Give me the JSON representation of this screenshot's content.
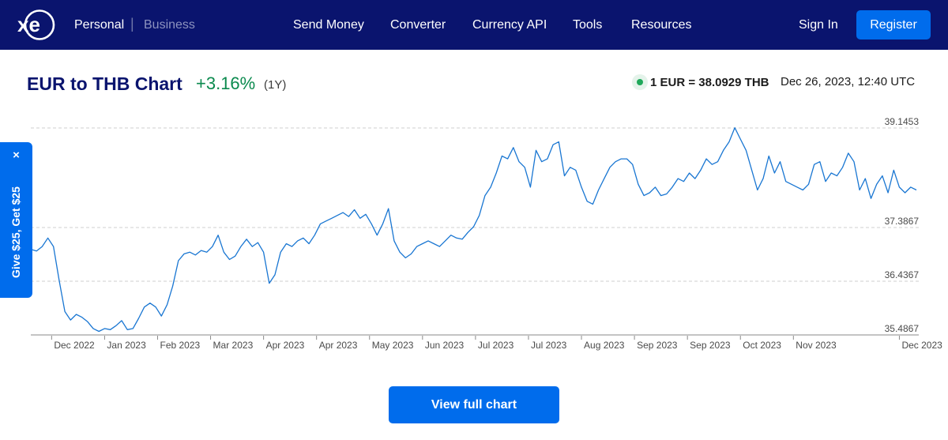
{
  "header": {
    "logo_text": "xe",
    "segments": {
      "personal": "Personal",
      "separator": "|",
      "business": "Business"
    },
    "nav": [
      {
        "label": "Send Money"
      },
      {
        "label": "Converter"
      },
      {
        "label": "Currency API"
      },
      {
        "label": "Tools"
      },
      {
        "label": "Resources"
      }
    ],
    "sign_in": "Sign In",
    "register": "Register",
    "colors": {
      "background": "#0a146e",
      "register_button": "#006cec"
    }
  },
  "summary": {
    "title": "EUR to THB Chart",
    "change": "+3.16%",
    "period": "(1Y)",
    "rate": "1 EUR = 38.0929 THB",
    "timestamp": "Dec 26, 2023, 12:40 UTC",
    "live_indicator": "green-dot-icon",
    "colors": {
      "title": "#0a146e",
      "change": "#0b8a4e",
      "live": "#1fa85a"
    }
  },
  "referral": {
    "close_label": "×",
    "text": "Give $25, Get $25"
  },
  "view_full_chart": "View full chart",
  "chart_data": {
    "type": "line",
    "title": "",
    "xlabel": "",
    "ylabel": "",
    "y_ticks": [
      {
        "value": 39.1453,
        "label": "39.1453"
      },
      {
        "value": 37.3867,
        "label": "37.3867"
      },
      {
        "value": 36.4367,
        "label": "36.4367"
      },
      {
        "value": 35.4867,
        "label": "35.4867"
      }
    ],
    "ylim": [
      35.4867,
      39.3
    ],
    "grid": "horizontal dashed",
    "line_color": "#1976d2",
    "x_tick_labels": [
      {
        "label": "Dec 2022",
        "date": "2022-12-28"
      },
      {
        "label": "Jan 2023",
        "date": "2023-01-25"
      },
      {
        "label": "Feb 2023",
        "date": "2023-02-22"
      },
      {
        "label": "Mar 2023",
        "date": "2023-03-22"
      },
      {
        "label": "Apr 2023",
        "date": "2023-04-19"
      },
      {
        "label": "Apr 2023",
        "date": "2023-05-17"
      },
      {
        "label": "May 2023",
        "date": "2023-06-14"
      },
      {
        "label": "Jun 2023",
        "date": "2023-07-12"
      },
      {
        "label": "Jul 2023",
        "date": "2023-08-09"
      },
      {
        "label": "Jul 2023",
        "date": "2023-09-06"
      },
      {
        "label": "Aug 2023",
        "date": "2023-10-04"
      },
      {
        "label": "Sep 2023",
        "date": "2023-11-01"
      },
      {
        "label": "Sep 2023",
        "date": "2023-11-29"
      },
      {
        "label": "Oct 2023",
        "date": "2023-12-27"
      },
      {
        "label": "Nov 2023",
        "date": "2024-01-24"
      },
      {
        "label": "Dec 2023",
        "date": "2024-03-20"
      }
    ],
    "series": [
      {
        "points": [
          [
            "2022-12-17",
            37.0
          ],
          [
            "2022-12-20",
            36.97
          ],
          [
            "2022-12-23",
            37.05
          ],
          [
            "2022-12-26",
            37.2
          ],
          [
            "2022-12-29",
            37.05
          ],
          [
            "2023-01-01",
            36.45
          ],
          [
            "2023-01-04",
            35.9
          ],
          [
            "2023-01-07",
            35.75
          ],
          [
            "2023-01-10",
            35.85
          ],
          [
            "2023-01-13",
            35.8
          ],
          [
            "2023-01-16",
            35.72
          ],
          [
            "2023-01-19",
            35.6
          ],
          [
            "2023-01-22",
            35.55
          ],
          [
            "2023-01-25",
            35.6
          ],
          [
            "2023-01-28",
            35.58
          ],
          [
            "2023-01-31",
            35.65
          ],
          [
            "2023-02-03",
            35.74
          ],
          [
            "2023-02-06",
            35.58
          ],
          [
            "2023-02-09",
            35.6
          ],
          [
            "2023-02-12",
            35.78
          ],
          [
            "2023-02-15",
            35.98
          ],
          [
            "2023-02-18",
            36.05
          ],
          [
            "2023-02-21",
            35.98
          ],
          [
            "2023-02-24",
            35.82
          ],
          [
            "2023-02-27",
            36.02
          ],
          [
            "2023-03-02",
            36.35
          ],
          [
            "2023-03-05",
            36.8
          ],
          [
            "2023-03-08",
            36.92
          ],
          [
            "2023-03-11",
            36.95
          ],
          [
            "2023-03-14",
            36.9
          ],
          [
            "2023-03-17",
            36.98
          ],
          [
            "2023-03-20",
            36.95
          ],
          [
            "2023-03-23",
            37.05
          ],
          [
            "2023-03-26",
            37.25
          ],
          [
            "2023-03-29",
            36.95
          ],
          [
            "2023-04-01",
            36.82
          ],
          [
            "2023-04-04",
            36.88
          ],
          [
            "2023-04-07",
            37.05
          ],
          [
            "2023-04-10",
            37.18
          ],
          [
            "2023-04-13",
            37.05
          ],
          [
            "2023-04-16",
            37.12
          ],
          [
            "2023-04-19",
            36.95
          ],
          [
            "2023-04-22",
            36.4
          ],
          [
            "2023-04-25",
            36.55
          ],
          [
            "2023-04-28",
            36.95
          ],
          [
            "2023-05-01",
            37.1
          ],
          [
            "2023-05-04",
            37.05
          ],
          [
            "2023-05-07",
            37.15
          ],
          [
            "2023-05-10",
            37.2
          ],
          [
            "2023-05-13",
            37.1
          ],
          [
            "2023-05-16",
            37.25
          ],
          [
            "2023-05-19",
            37.45
          ],
          [
            "2023-05-22",
            37.5
          ],
          [
            "2023-05-25",
            37.55
          ],
          [
            "2023-05-28",
            37.6
          ],
          [
            "2023-05-31",
            37.65
          ],
          [
            "2023-06-03",
            37.58
          ],
          [
            "2023-06-06",
            37.7
          ],
          [
            "2023-06-09",
            37.55
          ],
          [
            "2023-06-12",
            37.62
          ],
          [
            "2023-06-15",
            37.45
          ],
          [
            "2023-06-18",
            37.25
          ],
          [
            "2023-06-21",
            37.45
          ],
          [
            "2023-06-24",
            37.72
          ],
          [
            "2023-06-27",
            37.15
          ],
          [
            "2023-06-30",
            36.95
          ],
          [
            "2023-07-03",
            36.85
          ],
          [
            "2023-07-06",
            36.92
          ],
          [
            "2023-07-09",
            37.05
          ],
          [
            "2023-07-12",
            37.1
          ],
          [
            "2023-07-15",
            37.15
          ],
          [
            "2023-07-18",
            37.1
          ],
          [
            "2023-07-21",
            37.05
          ],
          [
            "2023-07-24",
            37.15
          ],
          [
            "2023-07-27",
            37.25
          ],
          [
            "2023-07-30",
            37.2
          ],
          [
            "2023-08-02",
            37.18
          ],
          [
            "2023-08-05",
            37.3
          ],
          [
            "2023-08-08",
            37.4
          ],
          [
            "2023-08-11",
            37.6
          ],
          [
            "2023-08-14",
            37.95
          ],
          [
            "2023-08-17",
            38.1
          ],
          [
            "2023-08-20",
            38.35
          ],
          [
            "2023-08-23",
            38.65
          ],
          [
            "2023-08-26",
            38.6
          ],
          [
            "2023-08-29",
            38.8
          ],
          [
            "2023-09-01",
            38.55
          ],
          [
            "2023-09-04",
            38.45
          ],
          [
            "2023-09-07",
            38.1
          ],
          [
            "2023-09-10",
            38.75
          ],
          [
            "2023-09-13",
            38.55
          ],
          [
            "2023-09-16",
            38.6
          ],
          [
            "2023-09-19",
            38.85
          ],
          [
            "2023-09-22",
            38.9
          ],
          [
            "2023-09-25",
            38.3
          ],
          [
            "2023-09-28",
            38.45
          ],
          [
            "2023-10-01",
            38.4
          ],
          [
            "2023-10-04",
            38.1
          ],
          [
            "2023-10-07",
            37.85
          ],
          [
            "2023-10-10",
            37.8
          ],
          [
            "2023-10-13",
            38.05
          ],
          [
            "2023-10-16",
            38.25
          ],
          [
            "2023-10-19",
            38.45
          ],
          [
            "2023-10-22",
            38.55
          ],
          [
            "2023-10-25",
            38.6
          ],
          [
            "2023-10-28",
            38.6
          ],
          [
            "2023-10-31",
            38.5
          ],
          [
            "2023-11-03",
            38.15
          ],
          [
            "2023-11-06",
            37.95
          ],
          [
            "2023-11-09",
            38.0
          ],
          [
            "2023-11-12",
            38.1
          ],
          [
            "2023-11-15",
            37.95
          ],
          [
            "2023-11-18",
            37.98
          ],
          [
            "2023-11-21",
            38.1
          ],
          [
            "2023-11-24",
            38.25
          ],
          [
            "2023-11-27",
            38.2
          ],
          [
            "2023-11-30",
            38.35
          ],
          [
            "2023-12-03",
            38.25
          ],
          [
            "2023-12-06",
            38.4
          ],
          [
            "2023-12-09",
            38.6
          ],
          [
            "2023-12-12",
            38.5
          ],
          [
            "2023-12-15",
            38.55
          ],
          [
            "2023-12-18",
            38.75
          ],
          [
            "2023-12-21",
            38.9
          ],
          [
            "2023-12-24",
            39.15
          ],
          [
            "2023-12-27",
            38.95
          ],
          [
            "2023-12-30",
            38.75
          ],
          [
            "2024-01-02",
            38.4
          ],
          [
            "2024-01-05",
            38.05
          ],
          [
            "2024-01-08",
            38.25
          ],
          [
            "2024-01-11",
            38.65
          ],
          [
            "2024-01-14",
            38.35
          ],
          [
            "2024-01-17",
            38.55
          ],
          [
            "2024-01-20",
            38.2
          ],
          [
            "2024-01-23",
            38.15
          ],
          [
            "2024-01-26",
            38.1
          ],
          [
            "2024-01-29",
            38.05
          ],
          [
            "2024-02-01",
            38.15
          ],
          [
            "2024-02-04",
            38.5
          ],
          [
            "2024-02-07",
            38.55
          ],
          [
            "2024-02-10",
            38.2
          ],
          [
            "2024-02-13",
            38.35
          ],
          [
            "2024-02-16",
            38.3
          ],
          [
            "2024-02-19",
            38.45
          ],
          [
            "2024-02-22",
            38.7
          ],
          [
            "2024-02-25",
            38.55
          ],
          [
            "2024-02-28",
            38.05
          ],
          [
            "2024-03-02",
            38.25
          ],
          [
            "2024-03-05",
            37.9
          ],
          [
            "2024-03-08",
            38.15
          ],
          [
            "2024-03-11",
            38.3
          ],
          [
            "2024-03-14",
            38.0
          ],
          [
            "2024-03-17",
            38.4
          ],
          [
            "2024-03-20",
            38.1
          ],
          [
            "2024-03-23",
            38.0
          ],
          [
            "2024-03-26",
            38.1
          ],
          [
            "2024-03-29",
            38.05
          ]
        ]
      }
    ]
  }
}
